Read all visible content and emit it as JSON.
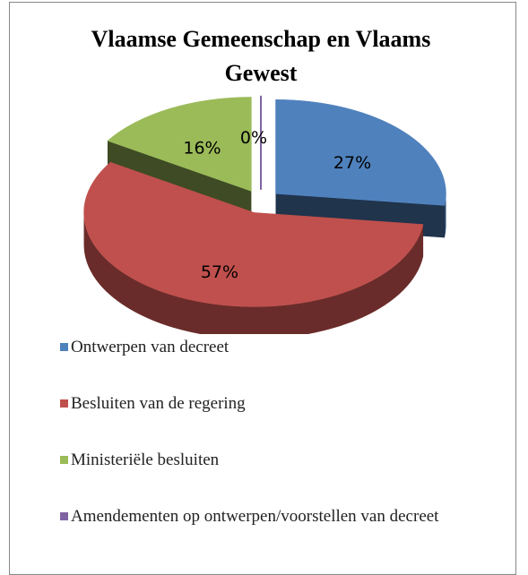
{
  "chart_data": {
    "type": "pie3d",
    "title": "Vlaamse Gemeenschap en Vlaams Gewest",
    "categories": [
      "Ontwerpen van decreet",
      "Besluiten van de regering",
      "Ministeriële besluiten",
      "Amendementen op ontwerpen/voorstellen van decreet"
    ],
    "values": [
      27,
      57,
      16,
      0
    ],
    "value_labels": [
      "27%",
      "57%",
      "16%",
      "0%"
    ],
    "colors": [
      "#4f81bd",
      "#c0504d",
      "#9bbb59",
      "#8064a2"
    ],
    "legend": "bottom"
  }
}
